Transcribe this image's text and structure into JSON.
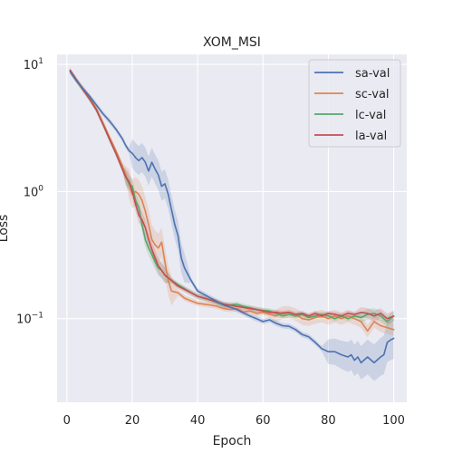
{
  "chart_data": {
    "type": "line",
    "title": "XOM_MSI",
    "xlabel": "Epoch",
    "ylabel": "Loss",
    "yscale": "log",
    "xlim": [
      -3,
      104
    ],
    "ylim": [
      0.022,
      12
    ],
    "x_ticks": [
      0,
      20,
      40,
      60,
      80,
      100
    ],
    "y_ticks": [
      {
        "value": 10,
        "base": "10",
        "exp": "1"
      },
      {
        "value": 1,
        "base": "10",
        "exp": "0"
      },
      {
        "value": 0.1,
        "base": "10",
        "exp": "−1"
      }
    ],
    "grid": true,
    "legend_position": "upper right",
    "series": [
      {
        "name": "sa-val",
        "color": "#4c72b0",
        "points": [
          [
            1,
            8.8
          ],
          [
            3,
            7.4
          ],
          [
            5,
            6.4
          ],
          [
            7,
            5.6
          ],
          [
            9,
            4.8
          ],
          [
            11,
            4.1
          ],
          [
            13,
            3.6
          ],
          [
            15,
            3.1
          ],
          [
            17,
            2.6
          ],
          [
            18,
            2.3
          ],
          [
            19,
            2.1
          ],
          [
            20,
            2.0
          ],
          [
            21,
            1.85
          ],
          [
            22,
            1.75
          ],
          [
            23,
            1.85
          ],
          [
            24,
            1.7
          ],
          [
            25,
            1.45
          ],
          [
            26,
            1.7
          ],
          [
            27,
            1.5
          ],
          [
            28,
            1.35
          ],
          [
            29,
            1.1
          ],
          [
            30,
            1.15
          ],
          [
            31,
            0.95
          ],
          [
            32,
            0.72
          ],
          [
            33,
            0.55
          ],
          [
            34,
            0.45
          ],
          [
            35,
            0.3
          ],
          [
            36,
            0.25
          ],
          [
            38,
            0.2
          ],
          [
            40,
            0.165
          ],
          [
            44,
            0.145
          ],
          [
            48,
            0.128
          ],
          [
            52,
            0.118
          ],
          [
            56,
            0.105
          ],
          [
            58,
            0.1
          ],
          [
            60,
            0.095
          ],
          [
            62,
            0.098
          ],
          [
            64,
            0.092
          ],
          [
            66,
            0.088
          ],
          [
            68,
            0.087
          ],
          [
            70,
            0.082
          ],
          [
            72,
            0.075
          ],
          [
            74,
            0.072
          ],
          [
            76,
            0.065
          ],
          [
            78,
            0.058
          ],
          [
            80,
            0.055
          ],
          [
            82,
            0.055
          ],
          [
            84,
            0.052
          ],
          [
            86,
            0.05
          ],
          [
            87,
            0.052
          ],
          [
            88,
            0.047
          ],
          [
            89,
            0.05
          ],
          [
            90,
            0.045
          ],
          [
            92,
            0.05
          ],
          [
            94,
            0.045
          ],
          [
            96,
            0.05
          ],
          [
            97,
            0.052
          ],
          [
            98,
            0.065
          ],
          [
            99,
            0.068
          ],
          [
            100,
            0.07
          ]
        ]
      },
      {
        "name": "sc-val",
        "color": "#dd8452",
        "points": [
          [
            1,
            8.8
          ],
          [
            3,
            7.5
          ],
          [
            5,
            6.4
          ],
          [
            7,
            5.5
          ],
          [
            9,
            4.5
          ],
          [
            11,
            3.5
          ],
          [
            13,
            2.7
          ],
          [
            15,
            2.1
          ],
          [
            17,
            1.6
          ],
          [
            19,
            1.15
          ],
          [
            20,
            0.95
          ],
          [
            21,
            1.0
          ],
          [
            22,
            0.95
          ],
          [
            23,
            0.85
          ],
          [
            24,
            0.7
          ],
          [
            25,
            0.55
          ],
          [
            26,
            0.42
          ],
          [
            27,
            0.38
          ],
          [
            28,
            0.36
          ],
          [
            29,
            0.4
          ],
          [
            30,
            0.28
          ],
          [
            31,
            0.2
          ],
          [
            32,
            0.165
          ],
          [
            34,
            0.16
          ],
          [
            36,
            0.145
          ],
          [
            38,
            0.138
          ],
          [
            40,
            0.132
          ],
          [
            44,
            0.128
          ],
          [
            46,
            0.125
          ],
          [
            48,
            0.12
          ],
          [
            50,
            0.118
          ],
          [
            52,
            0.12
          ],
          [
            54,
            0.113
          ],
          [
            56,
            0.115
          ],
          [
            58,
            0.11
          ],
          [
            60,
            0.112
          ],
          [
            62,
            0.108
          ],
          [
            64,
            0.105
          ],
          [
            66,
            0.112
          ],
          [
            68,
            0.112
          ],
          [
            70,
            0.108
          ],
          [
            72,
            0.1
          ],
          [
            74,
            0.098
          ],
          [
            76,
            0.102
          ],
          [
            78,
            0.105
          ],
          [
            80,
            0.1
          ],
          [
            82,
            0.105
          ],
          [
            84,
            0.1
          ],
          [
            86,
            0.105
          ],
          [
            88,
            0.1
          ],
          [
            90,
            0.095
          ],
          [
            92,
            0.08
          ],
          [
            94,
            0.095
          ],
          [
            96,
            0.088
          ],
          [
            98,
            0.085
          ],
          [
            100,
            0.082
          ]
        ]
      },
      {
        "name": "lc-val",
        "color": "#55a868",
        "points": [
          [
            1,
            8.8
          ],
          [
            3,
            7.5
          ],
          [
            5,
            6.3
          ],
          [
            7,
            5.4
          ],
          [
            9,
            4.4
          ],
          [
            11,
            3.4
          ],
          [
            13,
            2.6
          ],
          [
            15,
            2.0
          ],
          [
            17,
            1.5
          ],
          [
            18,
            1.3
          ],
          [
            19,
            1.15
          ],
          [
            20,
            1.1
          ],
          [
            21,
            0.85
          ],
          [
            22,
            0.75
          ],
          [
            23,
            0.55
          ],
          [
            24,
            0.42
          ],
          [
            25,
            0.36
          ],
          [
            26,
            0.32
          ],
          [
            27,
            0.28
          ],
          [
            28,
            0.25
          ],
          [
            29,
            0.24
          ],
          [
            30,
            0.22
          ],
          [
            32,
            0.2
          ],
          [
            34,
            0.185
          ],
          [
            36,
            0.172
          ],
          [
            38,
            0.16
          ],
          [
            40,
            0.15
          ],
          [
            44,
            0.14
          ],
          [
            48,
            0.128
          ],
          [
            50,
            0.128
          ],
          [
            52,
            0.13
          ],
          [
            54,
            0.125
          ],
          [
            56,
            0.122
          ],
          [
            58,
            0.118
          ],
          [
            60,
            0.116
          ],
          [
            62,
            0.115
          ],
          [
            64,
            0.11
          ],
          [
            66,
            0.105
          ],
          [
            68,
            0.108
          ],
          [
            70,
            0.105
          ],
          [
            72,
            0.108
          ],
          [
            74,
            0.102
          ],
          [
            76,
            0.105
          ],
          [
            78,
            0.108
          ],
          [
            80,
            0.105
          ],
          [
            82,
            0.1
          ],
          [
            84,
            0.105
          ],
          [
            86,
            0.1
          ],
          [
            88,
            0.105
          ],
          [
            90,
            0.102
          ],
          [
            92,
            0.108
          ],
          [
            94,
            0.11
          ],
          [
            96,
            0.105
          ],
          [
            98,
            0.095
          ],
          [
            100,
            0.105
          ]
        ]
      },
      {
        "name": "la-val",
        "color": "#c44e52",
        "points": [
          [
            1,
            9.0
          ],
          [
            3,
            7.5
          ],
          [
            5,
            6.3
          ],
          [
            7,
            5.3
          ],
          [
            9,
            4.4
          ],
          [
            11,
            3.4
          ],
          [
            13,
            2.6
          ],
          [
            15,
            2.0
          ],
          [
            17,
            1.5
          ],
          [
            18,
            1.3
          ],
          [
            19,
            1.2
          ],
          [
            20,
            1.0
          ],
          [
            21,
            0.8
          ],
          [
            22,
            0.65
          ],
          [
            23,
            0.6
          ],
          [
            24,
            0.52
          ],
          [
            25,
            0.42
          ],
          [
            26,
            0.35
          ],
          [
            27,
            0.3
          ],
          [
            28,
            0.26
          ],
          [
            29,
            0.24
          ],
          [
            30,
            0.22
          ],
          [
            32,
            0.2
          ],
          [
            34,
            0.18
          ],
          [
            36,
            0.17
          ],
          [
            38,
            0.16
          ],
          [
            40,
            0.15
          ],
          [
            44,
            0.14
          ],
          [
            48,
            0.13
          ],
          [
            52,
            0.125
          ],
          [
            56,
            0.12
          ],
          [
            58,
            0.118
          ],
          [
            60,
            0.115
          ],
          [
            62,
            0.112
          ],
          [
            64,
            0.112
          ],
          [
            66,
            0.11
          ],
          [
            68,
            0.112
          ],
          [
            70,
            0.108
          ],
          [
            72,
            0.11
          ],
          [
            74,
            0.105
          ],
          [
            76,
            0.11
          ],
          [
            78,
            0.105
          ],
          [
            80,
            0.11
          ],
          [
            82,
            0.108
          ],
          [
            84,
            0.105
          ],
          [
            86,
            0.11
          ],
          [
            88,
            0.108
          ],
          [
            90,
            0.112
          ],
          [
            92,
            0.11
          ],
          [
            94,
            0.105
          ],
          [
            96,
            0.11
          ],
          [
            98,
            0.1
          ],
          [
            100,
            0.105
          ]
        ]
      }
    ]
  }
}
